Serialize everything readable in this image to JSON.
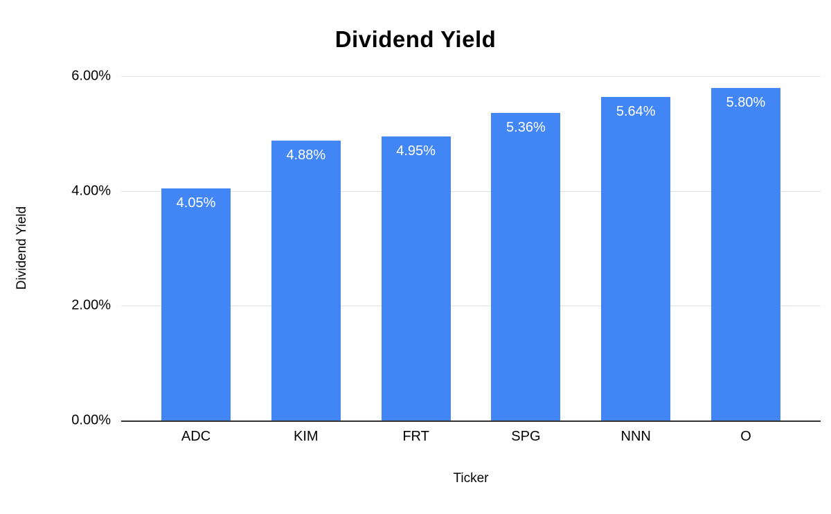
{
  "chart_data": {
    "type": "bar",
    "title": "Dividend Yield",
    "xlabel": "Ticker",
    "ylabel": "Dividend Yield",
    "categories": [
      "ADC",
      "KIM",
      "FRT",
      "SPG",
      "NNN",
      "O"
    ],
    "values": [
      4.05,
      4.88,
      4.95,
      5.36,
      5.64,
      5.8
    ],
    "data_labels": [
      "4.05%",
      "4.88%",
      "4.95%",
      "5.36%",
      "5.64%",
      "5.80%"
    ],
    "ylim": [
      0,
      6
    ],
    "y_ticks": [
      {
        "value": 0,
        "label": "0.00%"
      },
      {
        "value": 2,
        "label": "2.00%"
      },
      {
        "value": 4,
        "label": "4.00%"
      },
      {
        "value": 6,
        "label": "6.00%"
      }
    ],
    "grid": true,
    "legend": "none",
    "colors": {
      "bar": "#4285F4",
      "bar_label": "#ffffff",
      "gridline": "#e0e0e0",
      "axis_line": "#333333"
    }
  }
}
